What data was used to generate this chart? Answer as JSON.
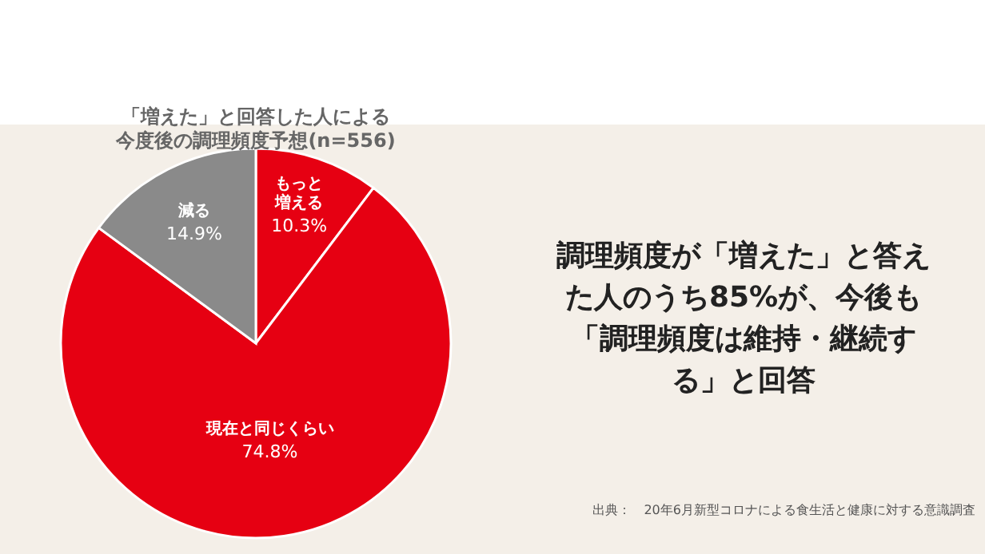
{
  "chart_data": {
    "type": "pie",
    "title": "「増えた」と回答した人による",
    "subtitle": "今度後の調理頻度予想(n=556)",
    "categories": [
      "もっと増える",
      "現在と同じくらい",
      "減る"
    ],
    "values": [
      10.3,
      74.8,
      14.9
    ],
    "colors": [
      "#e60012",
      "#e60012",
      "#8a8a8a"
    ],
    "value_labels": [
      "10.3%",
      "74.8%",
      "14.9%"
    ],
    "annotations": [
      "調理頻度が「増えた」と答えた人のうち85%が、今後も「調理頻度は維持・継続する」と回答",
      "出典：　20年6月新型コロナによる食生活と健康に対する意識調査"
    ]
  }
}
